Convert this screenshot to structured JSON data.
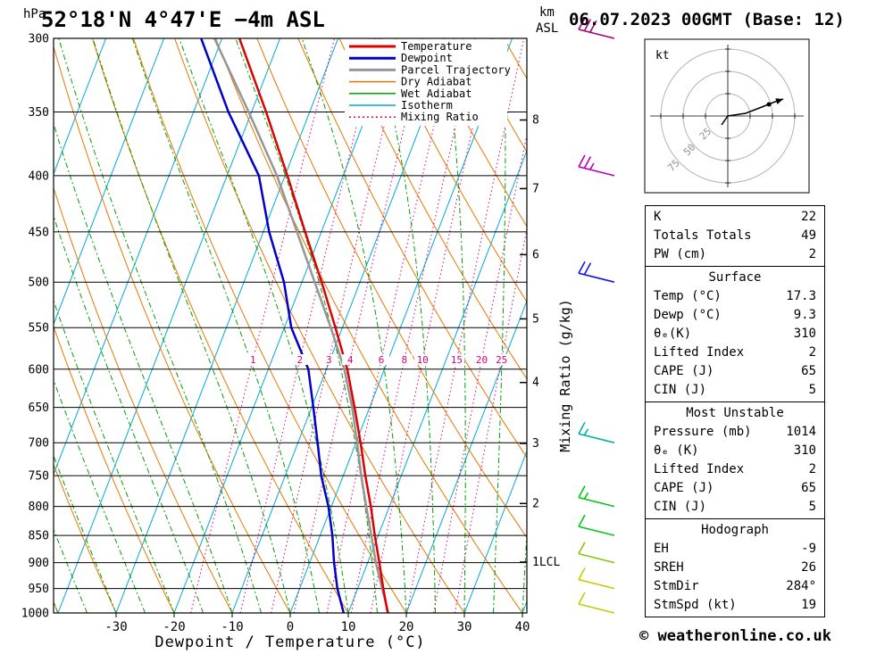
{
  "header": {
    "station_title": "52°18'N 4°47'E −4m ASL",
    "datetime_title": "06.07.2023 00GMT (Base: 12)",
    "pressure_axis_unit": "hPa",
    "alt_axis_unit_line1": "km",
    "alt_axis_unit_line2": "ASL"
  },
  "footer": {
    "credit": "© weatheronline.co.uk"
  },
  "legend": [
    {
      "label": "Temperature",
      "color": "#dc0000",
      "width": 3,
      "dash": ""
    },
    {
      "label": "Dewpoint",
      "color": "#0000c8",
      "width": 3,
      "dash": ""
    },
    {
      "label": "Parcel Trajectory",
      "color": "#969696",
      "width": 3,
      "dash": ""
    },
    {
      "label": "Dry Adiabat",
      "color": "#e67800",
      "width": 1.5,
      "dash": ""
    },
    {
      "label": "Wet Adiabat",
      "color": "#00a000",
      "width": 1.5,
      "dash": ""
    },
    {
      "label": "Isotherm",
      "color": "#00a8d8",
      "width": 1.5,
      "dash": ""
    },
    {
      "label": "Mixing Ratio",
      "color": "#dc0078",
      "width": 1.5,
      "dash": "2 3"
    }
  ],
  "chart_data": {
    "type": "skewt_log_p_sounding",
    "pressure_ticks": [
      300,
      350,
      400,
      450,
      500,
      550,
      600,
      650,
      700,
      750,
      800,
      850,
      900,
      950,
      1000
    ],
    "pressure_range": [
      300,
      1000
    ],
    "temp_ticks": [
      -30,
      -20,
      -10,
      0,
      10,
      20,
      30,
      40
    ],
    "temp_axis_label": "Dewpoint / Temperature (°C)",
    "mixing_ratio_label": "Mixing Ratio (g/kg)",
    "mixing_ratio_values": [
      1,
      2,
      3,
      4,
      6,
      8,
      10,
      15,
      20,
      25
    ],
    "km_ticks": [
      {
        "label": "8",
        "p": 356
      },
      {
        "label": "7",
        "p": 411
      },
      {
        "label": "6",
        "p": 472
      },
      {
        "label": "5",
        "p": 540
      },
      {
        "label": "4",
        "p": 617
      },
      {
        "label": "3",
        "p": 701
      },
      {
        "label": "2",
        "p": 795
      },
      {
        "label": "1LCL",
        "p": 899
      }
    ],
    "isotherms": {
      "min": -90,
      "max": 40,
      "step": 10
    },
    "dry_adiabats": {
      "min": -60,
      "max": 140,
      "step": 10
    },
    "wet_adiabats": {
      "min": -60,
      "max": 40,
      "step": 5
    },
    "sounding": {
      "temperature": [
        [
          1014,
          17.3
        ],
        [
          1000,
          16.8
        ],
        [
          950,
          14.4
        ],
        [
          900,
          12.0
        ],
        [
          850,
          9.4
        ],
        [
          800,
          6.8
        ],
        [
          750,
          3.8
        ],
        [
          700,
          0.8
        ],
        [
          650,
          -2.6
        ],
        [
          600,
          -6.4
        ],
        [
          550,
          -11.2
        ],
        [
          500,
          -16.6
        ],
        [
          450,
          -22.8
        ],
        [
          400,
          -29.6
        ],
        [
          350,
          -37.5
        ],
        [
          300,
          -47.0
        ]
      ],
      "dewpoint": [
        [
          1014,
          9.3
        ],
        [
          1000,
          9.2
        ],
        [
          950,
          6.5
        ],
        [
          900,
          4.2
        ],
        [
          850,
          2.1
        ],
        [
          800,
          -0.5
        ],
        [
          750,
          -3.8
        ],
        [
          700,
          -6.6
        ],
        [
          650,
          -9.7
        ],
        [
          600,
          -13.1
        ],
        [
          550,
          -18.8
        ],
        [
          500,
          -23.1
        ],
        [
          450,
          -29.0
        ],
        [
          400,
          -34.5
        ],
        [
          350,
          -44.0
        ],
        [
          300,
          -53.6
        ]
      ],
      "parcel": [
        [
          1014,
          17.3
        ],
        [
          1000,
          16.9
        ],
        [
          950,
          14.2
        ],
        [
          900,
          11.4
        ],
        [
          850,
          8.8
        ],
        [
          800,
          6.0
        ],
        [
          750,
          3.1
        ],
        [
          700,
          0.2
        ],
        [
          650,
          -3.0
        ],
        [
          600,
          -6.9
        ],
        [
          550,
          -12.0
        ],
        [
          500,
          -17.8
        ],
        [
          450,
          -24.2
        ],
        [
          400,
          -31.4
        ],
        [
          350,
          -40.5
        ],
        [
          300,
          -51.3
        ]
      ]
    },
    "wind_barbs": [
      {
        "p": 300,
        "speed_kt": 30,
        "color": "#a00078"
      },
      {
        "p": 400,
        "speed_kt": 25,
        "color": "#b400b4"
      },
      {
        "p": 500,
        "speed_kt": 20,
        "color": "#1414dc"
      },
      {
        "p": 700,
        "speed_kt": 15,
        "color": "#00b4aa"
      },
      {
        "p": 800,
        "speed_kt": 15,
        "color": "#00c814"
      },
      {
        "p": 850,
        "speed_kt": 10,
        "color": "#00c814"
      },
      {
        "p": 900,
        "speed_kt": 10,
        "color": "#82c800"
      },
      {
        "p": 950,
        "speed_kt": 10,
        "color": "#c8c800"
      },
      {
        "p": 1000,
        "speed_kt": 10,
        "color": "#c8c800"
      }
    ],
    "colors": {
      "temperature": "#dc0000",
      "dewpoint": "#0000c8",
      "parcel": "#969696",
      "dry_adiabat": "#e67800",
      "wet_adiabat": "#00a000",
      "isotherm": "#00a8d8",
      "mixing_ratio": "#dc0078",
      "grid": "#000000"
    }
  },
  "hodograph": {
    "unit_label": "kt",
    "rings": [
      25,
      50,
      75
    ],
    "ring_labels": [
      "25",
      "50",
      "75"
    ],
    "trace_uv": [
      [
        -7,
        -10
      ],
      [
        0,
        0
      ],
      [
        20,
        3
      ],
      [
        38,
        10
      ],
      [
        53,
        16
      ]
    ],
    "marker_uv": [
      46,
      13
    ],
    "arrow_uv": [
      62,
      19
    ]
  },
  "tables": {
    "sections": [
      {
        "title": "",
        "rows": [
          [
            "K",
            "22"
          ],
          [
            "Totals Totals",
            "49"
          ],
          [
            "PW (cm)",
            "2"
          ]
        ]
      },
      {
        "title": "Surface",
        "rows": [
          [
            "Temp (°C)",
            "17.3"
          ],
          [
            "Dewp (°C)",
            "9.3"
          ],
          [
            "θₑ(K)",
            "310"
          ],
          [
            "Lifted Index",
            "2"
          ],
          [
            "CAPE (J)",
            "65"
          ],
          [
            "CIN (J)",
            "5"
          ]
        ]
      },
      {
        "title": "Most Unstable",
        "rows": [
          [
            "Pressure (mb)",
            "1014"
          ],
          [
            "θₑ (K)",
            "310"
          ],
          [
            "Lifted Index",
            "2"
          ],
          [
            "CAPE (J)",
            "65"
          ],
          [
            "CIN (J)",
            "5"
          ]
        ]
      },
      {
        "title": "Hodograph",
        "rows": [
          [
            "EH",
            "-9"
          ],
          [
            "SREH",
            "26"
          ],
          [
            "StmDir",
            "284°"
          ],
          [
            "StmSpd (kt)",
            "19"
          ]
        ]
      }
    ]
  }
}
